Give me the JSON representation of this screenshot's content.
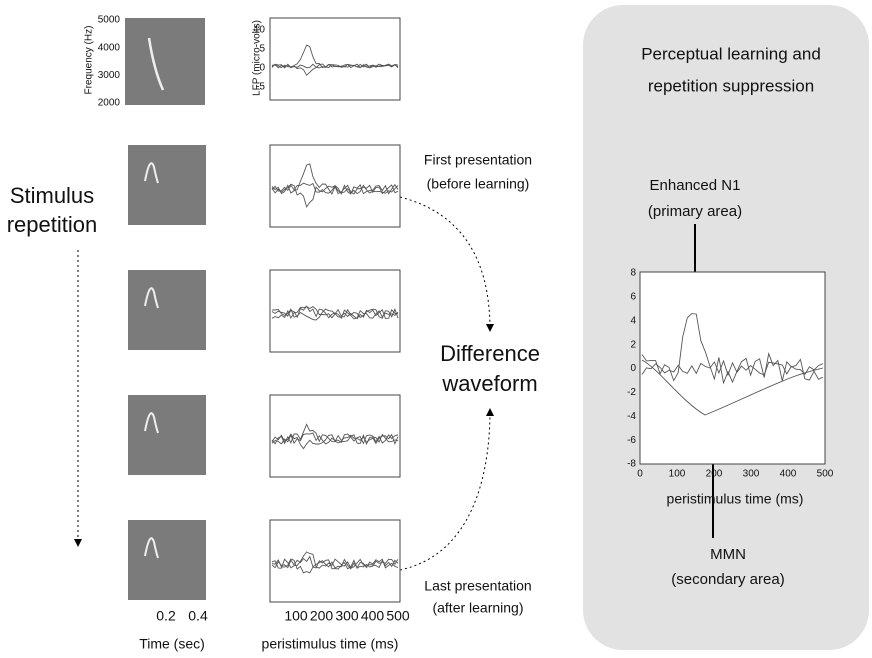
{
  "left_label": [
    "Stimulus",
    "repetition"
  ],
  "spectrogram": {
    "ylabel": "Frequency (Hz)",
    "yticks": [
      5000,
      4000,
      3000,
      2000
    ],
    "xticks": [
      0.2,
      0.4
    ],
    "xlabel": "Time (sec)"
  },
  "lfp": {
    "ylabel": "LFP (micro-volts)",
    "yticks": [
      10,
      5,
      0,
      -5
    ],
    "xticks": [
      100,
      200,
      300,
      400,
      500
    ],
    "xlabel": "peristimulus time (ms)"
  },
  "first_note": [
    "First presentation",
    "(before learning)"
  ],
  "last_note": [
    "Last presentation",
    "(after learning)"
  ],
  "difference": [
    "Difference",
    "waveform"
  ],
  "panel": {
    "title": [
      "Perceptual learning and",
      "repetition suppression"
    ],
    "n1": [
      "Enhanced N1",
      "(primary area)"
    ],
    "mmn": [
      "MMN",
      "(secondary area)"
    ],
    "yticks": [
      8,
      6,
      4,
      2,
      0,
      -2,
      -4,
      -6,
      -8
    ],
    "xticks": [
      0,
      100,
      200,
      300,
      400,
      500
    ],
    "xlabel": "peristimulus time (ms)"
  }
}
